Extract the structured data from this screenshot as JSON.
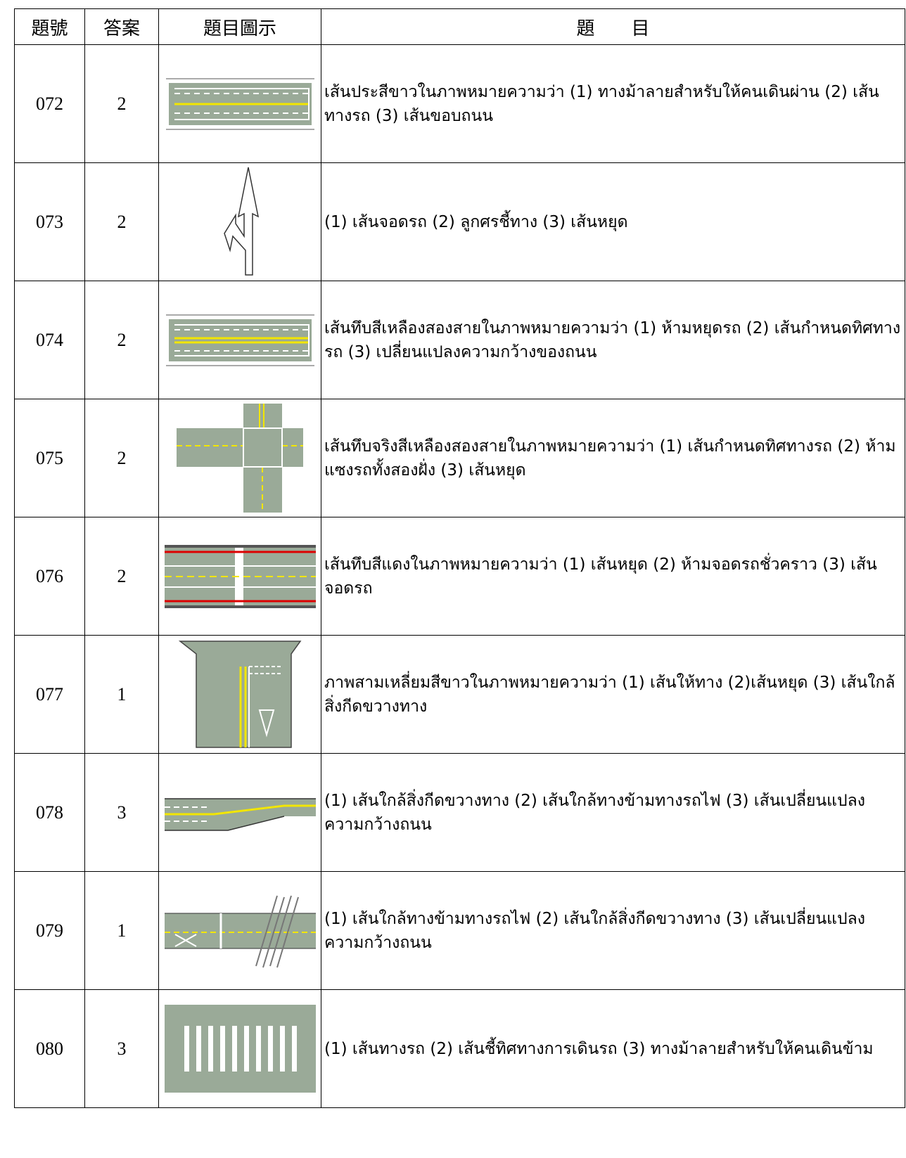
{
  "table": {
    "header": [
      "題號",
      "答案",
      "題目圖示",
      "題　　目"
    ],
    "rows": [
      [
        "072",
        "2",
        "เส้นประสีขาวในภาพหมายความว่า (1) ทางม้าลายสำหรับให้คนเดินผ่าน (2) เส้นทางรถ (3) เส้นขอบถนน"
      ],
      [
        "073",
        "2",
        "(1) เส้นจอดรถ (2) ลูกศรชี้ทาง (3) เส้นหยุด"
      ],
      [
        "074",
        "2",
        "เส้นทึบสีเหลืองสองสายในภาพหมายความว่า (1) ห้ามหยุดรถ (2) เส้นกำหนดทิศทางรถ (3) เปลี่ยนแปลงความกว้างของถนน"
      ],
      [
        "075",
        "2",
        "เส้นทึบจริงสีเหลืองสองสายในภาพหมายความว่า (1) เส้นกำหนดทิศทางรถ (2) ห้ามแซงรถทั้งสองฝั่ง (3) เส้นหยุด"
      ],
      [
        "076",
        "2",
        "เส้นทึบสีแดงในภาพหมายความว่า (1) เส้นหยุด (2) ห้ามจอดรถชั่วคราว (3) เส้นจอดรถ"
      ],
      [
        "077",
        "1",
        "ภาพสามเหลี่ยมสีขาวในภาพหมายความว่า (1) เส้นให้ทาง (2)เส้นหยุด (3) เส้นใกล้สิ่งกีดขวางทาง"
      ],
      [
        "078",
        "3",
        "(1) เส้นใกล้สิ่งกีดขวางทาง (2) เส้นใกล้ทางข้ามทางรถไฟ (3) เส้นเปลี่ยนแปลงความกว้างถนน"
      ],
      [
        "079",
        "1",
        "(1) เส้นใกล้ทางข้ามทางรถไฟ (2) เส้นใกล้สิ่งกีดขวางทาง (3) เส้นเปลี่ยนแปลงความกว้างถนน"
      ],
      [
        "080",
        "3",
        "(1) เส้นทางรถ (2) เส้นชี้ทิศทางการเดินรถ (3) ทางม้าลายสำหรับให้คนเดินข้าม"
      ]
    ]
  }
}
